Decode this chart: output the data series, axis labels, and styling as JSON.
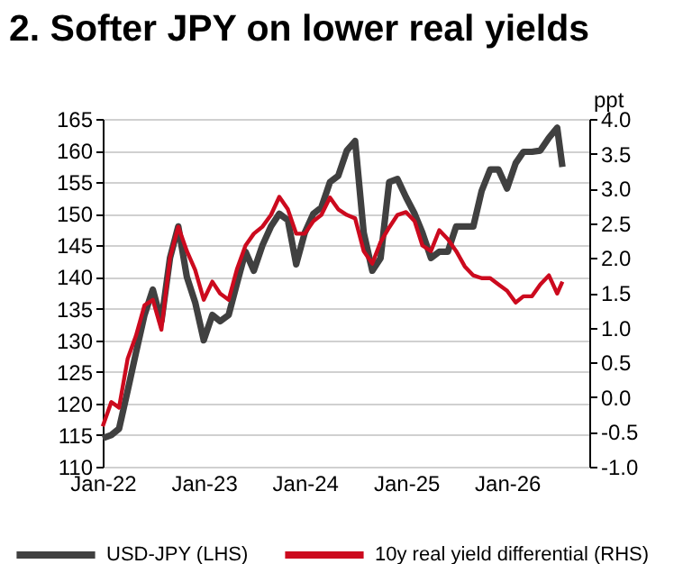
{
  "chart_data": {
    "type": "line",
    "title": "2. Softer JPY on lower real yields",
    "y2label": "ppt",
    "x": [
      "2022-01",
      "2022-02",
      "2022-03",
      "2022-04",
      "2022-05",
      "2022-06",
      "2022-07",
      "2022-08",
      "2022-09",
      "2022-10",
      "2022-11",
      "2022-12",
      "2023-01",
      "2023-02",
      "2023-03",
      "2023-04",
      "2023-05",
      "2023-06",
      "2023-07",
      "2023-08",
      "2023-09",
      "2023-10",
      "2023-11",
      "2023-12",
      "2024-01",
      "2024-02",
      "2024-03",
      "2024-04",
      "2024-05",
      "2024-06",
      "2024-07",
      "2024-08",
      "2024-09",
      "2024-10",
      "2024-11",
      "2024-12",
      "2025-01",
      "2025-02",
      "2025-03",
      "2025-04",
      "2025-05",
      "2025-06",
      "2025-07",
      "2025-08",
      "2025-09",
      "2025-10",
      "2025-11",
      "2025-12",
      "2026-01",
      "2026-02",
      "2026-03",
      "2026-04",
      "2026-05",
      "2026-06",
      "2026-07",
      "2026-07-20"
    ],
    "series": [
      {
        "name": "USD-JPY (LHS)",
        "color": "#404040",
        "values": [
          114.5,
          115,
          116,
          122,
          128,
          134,
          138,
          133,
          143,
          148,
          140,
          136,
          130,
          134,
          133,
          134,
          139,
          144,
          141,
          145,
          148,
          150,
          149,
          142,
          147,
          150,
          151,
          155,
          156,
          160,
          161.5,
          147,
          141,
          143,
          155,
          155.5,
          152.6,
          150,
          147,
          143,
          144,
          144,
          148,
          148,
          148,
          153.6,
          157,
          157,
          154,
          158,
          159.8,
          159.8,
          160,
          162,
          163.6,
          157.4
        ]
      },
      {
        "name": "10y real yield differential (RHS)",
        "color": "#cc0a1e",
        "axis": "y2",
        "values": [
          -0.42,
          -0.07,
          -0.15,
          0.55,
          0.88,
          1.32,
          1.4,
          0.97,
          2.0,
          2.45,
          2.1,
          1.83,
          1.4,
          1.66,
          1.49,
          1.4,
          1.84,
          2.18,
          2.35,
          2.45,
          2.62,
          2.88,
          2.7,
          2.35,
          2.35,
          2.53,
          2.62,
          2.87,
          2.7,
          2.62,
          2.57,
          2.1,
          1.92,
          2.23,
          2.44,
          2.62,
          2.66,
          2.53,
          2.18,
          2.1,
          2.4,
          2.27,
          2.1,
          1.88,
          1.75,
          1.71,
          1.71,
          1.62,
          1.53,
          1.36,
          1.45,
          1.45,
          1.62,
          1.75,
          1.49,
          1.66
        ]
      }
    ],
    "xlim": [
      "2022-01",
      "2026-10-25"
    ],
    "xticks": [
      {
        "value": "2022-01",
        "label": "Jan-22"
      },
      {
        "value": "2023-01",
        "label": "Jan-23"
      },
      {
        "value": "2024-01",
        "label": "Jan-24"
      },
      {
        "value": "2025-01",
        "label": "Jan-25"
      },
      {
        "value": "2026-01",
        "label": "Jan-26"
      }
    ],
    "ylim": [
      110,
      165
    ],
    "yticks": [
      110,
      115,
      120,
      125,
      130,
      135,
      140,
      145,
      150,
      155,
      160,
      165
    ],
    "y2lim": [
      -1,
      4
    ],
    "y2ticks": [
      {
        "value": -1,
        "label": "-1.0"
      },
      {
        "value": -0.5,
        "label": "-0.5"
      },
      {
        "value": 0,
        "label": "0.0"
      },
      {
        "value": 0.5,
        "label": "0.5"
      },
      {
        "value": 1,
        "label": "1.0"
      },
      {
        "value": 1.5,
        "label": "1.5"
      },
      {
        "value": 2,
        "label": "2.0"
      },
      {
        "value": 2.5,
        "label": "2.5"
      },
      {
        "value": 3,
        "label": "3.0"
      },
      {
        "value": 3.5,
        "label": "3.5"
      },
      {
        "value": 4,
        "label": "4.0"
      }
    ],
    "grid": "y",
    "legend": "bottom",
    "marker": "none",
    "line_style": "solid"
  }
}
